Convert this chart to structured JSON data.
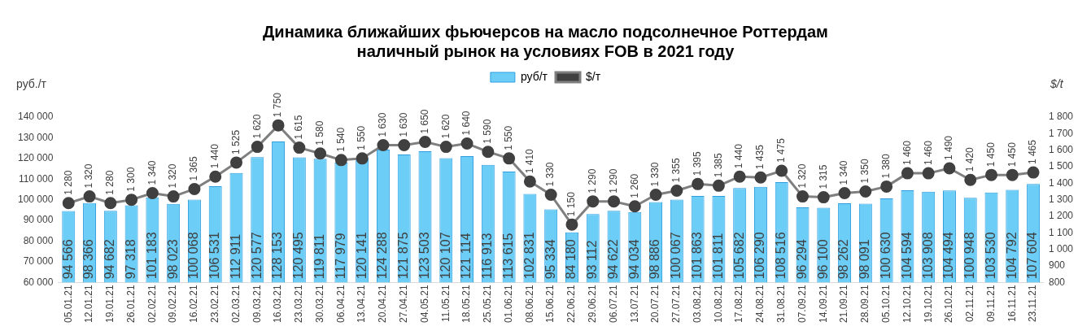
{
  "chart_data": {
    "type": "bar",
    "title": "Динамика ближайших фьючерсов на масло подсолнечное Роттердам\nналичный рынок на условиях FOB в 2021 году",
    "ylabel": "руб./т",
    "y2label": "$/t",
    "categories": [
      "05.01.21",
      "12.01.21",
      "19.01.21",
      "26.01.21",
      "02.02.21",
      "09.02.21",
      "16.02.21",
      "23.02.21",
      "02.03.21",
      "09.03.21",
      "16.03.21",
      "23.03.21",
      "30.03.21",
      "06.04.21",
      "13.04.21",
      "20.04.21",
      "27.04.21",
      "04.05.21",
      "11.05.21",
      "18.05.21",
      "25.05.21",
      "01.06.21",
      "08.06.21",
      "15.06.21",
      "22.06.21",
      "29.06.21",
      "06.07.21",
      "13.07.21",
      "20.07.21",
      "27.07.21",
      "03.08.21",
      "10.08.21",
      "17.08.21",
      "24.08.21",
      "31.08.21",
      "07.09.21",
      "14.09.21",
      "21.09.21",
      "28.09.21",
      "05.10.21",
      "12.10.21",
      "19.10.21",
      "26.10.21",
      "02.11.21",
      "09.11.21",
      "16.11.21",
      "23.11.21"
    ],
    "series": [
      {
        "name": "руб/т",
        "color": "#6ccdf7",
        "values": [
          94566,
          98366,
          94682,
          97318,
          101183,
          98023,
          100068,
          106531,
          112911,
          120577,
          128153,
          120495,
          119811,
          117979,
          120141,
          124288,
          121875,
          123503,
          120107,
          121114,
          116913,
          113615,
          102831,
          95334,
          84180,
          93112,
          94622,
          94034,
          98886,
          100067,
          101863,
          101811,
          105682,
          106290,
          108516,
          96294,
          96100,
          98262,
          98091,
          100630,
          104594,
          103908,
          104494,
          100948,
          103530,
          104792,
          107604
        ],
        "value_labels": [
          "94 566",
          "98 366",
          "94 682",
          "97 318",
          "101 183",
          "98 023",
          "100 068",
          "106 531",
          "112 911",
          "120 577",
          "128 153",
          "120 495",
          "119 811",
          "117 979",
          "120 141",
          "124 288",
          "121 875",
          "123 503",
          "120 107",
          "121 114",
          "116 913",
          "113 615",
          "102 831",
          "95 334",
          "84 180",
          "93 112",
          "94 622",
          "94 034",
          "98 886",
          "100 067",
          "101 863",
          "101 811",
          "105 682",
          "106 290",
          "108 516",
          "96 294",
          "96 100",
          "98 262",
          "98 091",
          "100 630",
          "104 594",
          "103 908",
          "104 494",
          "100 948",
          "103 530",
          "104 792",
          "107 604"
        ]
      },
      {
        "name": "$/т",
        "type": "line",
        "axis": "y2",
        "color": "#7f7f7f",
        "values": [
          1280,
          1320,
          1280,
          1300,
          1340,
          1320,
          1365,
          1440,
          1525,
          1620,
          1750,
          1615,
          1580,
          1540,
          1550,
          1630,
          1630,
          1650,
          1620,
          1640,
          1590,
          1550,
          1410,
          1330,
          1150,
          1290,
          1290,
          1260,
          1330,
          1355,
          1395,
          1385,
          1440,
          1435,
          1475,
          1320,
          1315,
          1340,
          1350,
          1380,
          1460,
          1460,
          1490,
          1420,
          1450,
          1450,
          1465
        ],
        "value_labels": [
          "1 280",
          "1 320",
          "1 280",
          "1 300",
          "1 340",
          "1 320",
          "1 365",
          "1 440",
          "1 525",
          "1 620",
          "1 750",
          "1 615",
          "1 580",
          "1 540",
          "1 550",
          "1 630",
          "1 630",
          "1 650",
          "1 620",
          "1 640",
          "1 590",
          "1 550",
          "1 410",
          "1 330",
          "1 150",
          "1 290",
          "1 290",
          "1 260",
          "1 330",
          "1 355",
          "1 395",
          "1 385",
          "1 440",
          "1 435",
          "1 475",
          "1 320",
          "1 315",
          "1 340",
          "1 350",
          "1 380",
          "1 460",
          "1 460",
          "1 490",
          "1 420",
          "1 450",
          "1 450",
          "1 465"
        ]
      }
    ],
    "ylim": [
      60000,
      140000
    ],
    "yticks": [
      {
        "value": 60000,
        "label": "60 000"
      },
      {
        "value": 70000,
        "label": "70 000"
      },
      {
        "value": 80000,
        "label": "80 000"
      },
      {
        "value": 90000,
        "label": "90 000"
      },
      {
        "value": 100000,
        "label": "100 000"
      },
      {
        "value": 110000,
        "label": "110 000"
      },
      {
        "value": 120000,
        "label": "120 000"
      },
      {
        "value": 130000,
        "label": "130 000"
      },
      {
        "value": 140000,
        "label": "140 000"
      }
    ],
    "y2lim": [
      800,
      1800
    ],
    "y2ticks": [
      800,
      900,
      {
        "value": 1000,
        "label": "1 000"
      },
      {
        "value": 1100,
        "label": "1 100"
      },
      {
        "value": 1200,
        "label": "1 200"
      },
      {
        "value": 1300,
        "label": "1 300"
      },
      {
        "value": 1400,
        "label": "1 400"
      },
      {
        "value": 1500,
        "label": "1 500"
      },
      {
        "value": 1600,
        "label": "1 600"
      },
      {
        "value": 1700,
        "label": "1 700"
      },
      {
        "value": 1800,
        "label": "1 800"
      }
    ],
    "legend": "top",
    "grid": false,
    "marker": "circle",
    "line_style": "solid"
  }
}
